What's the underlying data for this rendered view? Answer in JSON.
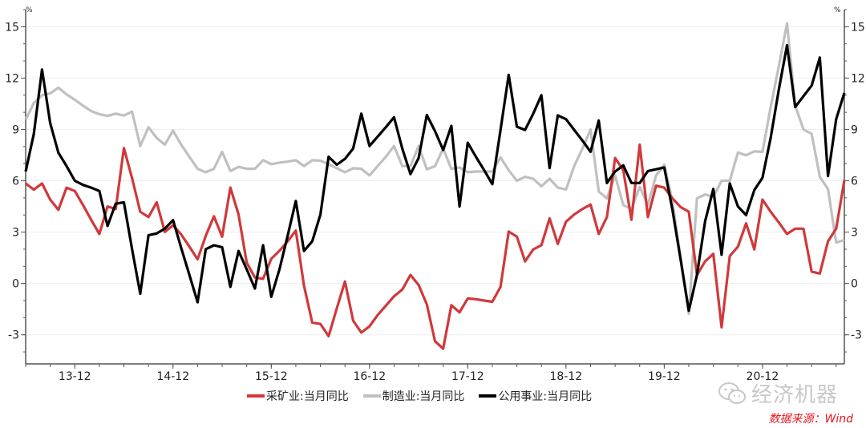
{
  "chart_data": {
    "type": "line",
    "x": [
      "2013-06",
      "2013-07",
      "2013-08",
      "2013-09",
      "2013-10",
      "2013-11",
      "2013-12",
      "2014-01",
      "2014-02",
      "2014-03",
      "2014-04",
      "2014-05",
      "2014-06",
      "2014-07",
      "2014-08",
      "2014-09",
      "2014-10",
      "2014-11",
      "2014-12",
      "2015-01",
      "2015-02",
      "2015-03",
      "2015-04",
      "2015-05",
      "2015-06",
      "2015-07",
      "2015-08",
      "2015-09",
      "2015-10",
      "2015-11",
      "2015-12",
      "2016-01",
      "2016-02",
      "2016-03",
      "2016-04",
      "2016-05",
      "2016-06",
      "2016-07",
      "2016-08",
      "2016-09",
      "2016-10",
      "2016-11",
      "2016-12",
      "2017-01",
      "2017-02",
      "2017-03",
      "2017-04",
      "2017-05",
      "2017-06",
      "2017-07",
      "2017-08",
      "2017-09",
      "2017-10",
      "2017-11",
      "2017-12",
      "2018-01",
      "2018-02",
      "2018-03",
      "2018-04",
      "2018-05",
      "2018-06",
      "2018-07",
      "2018-08",
      "2018-09",
      "2018-10",
      "2018-11",
      "2018-12",
      "2019-01",
      "2019-02",
      "2019-03",
      "2019-04",
      "2019-05",
      "2019-06",
      "2019-07",
      "2019-08",
      "2019-09",
      "2019-10",
      "2019-11",
      "2019-12",
      "2020-01",
      "2020-02",
      "2020-03",
      "2020-04",
      "2020-05",
      "2020-06",
      "2020-07",
      "2020-08",
      "2020-09",
      "2020-10",
      "2020-11",
      "2020-12",
      "2021-01",
      "2021-02",
      "2021-03",
      "2021-04",
      "2021-05",
      "2021-06",
      "2021-07",
      "2021-08",
      "2021-09",
      "2021-10"
    ],
    "x_tick_labels": [
      "13-12",
      "14-12",
      "15-12",
      "16-12",
      "17-12",
      "18-12",
      "19-12",
      "20-12"
    ],
    "x_tick_values": [
      "2013-12",
      "2014-12",
      "2015-12",
      "2016-12",
      "2017-12",
      "2018-12",
      "2019-12",
      "2020-12"
    ],
    "y_ticks": [
      -3,
      0,
      3,
      6,
      9,
      12,
      15
    ],
    "ylim": [
      -4.7,
      16
    ],
    "y_unit_left": "%",
    "y_unit_right": "%",
    "grid": true,
    "legend_position": "bottom",
    "series": [
      {
        "name": "采矿业:当月同比",
        "color": "#d0393b",
        "values": [
          5.84,
          5.48,
          5.84,
          4.9,
          4.3,
          5.6,
          5.4,
          4.58,
          3.72,
          2.89,
          4.5,
          4.35,
          7.91,
          6.15,
          4.19,
          3.88,
          4.74,
          3.01,
          3.4,
          2.86,
          2.15,
          1.41,
          2.78,
          3.92,
          2.73,
          5.6,
          4.03,
          1.21,
          0.35,
          0.27,
          1.44,
          1.91,
          2.46,
          3.09,
          -0.13,
          -2.29,
          -2.37,
          -3.08,
          -1.46,
          0.11,
          -2.17,
          -2.87,
          -2.51,
          -1.85,
          -1.3,
          -0.75,
          -0.36,
          0.5,
          -0.09,
          -1.22,
          -3.38,
          -3.81,
          -1.27,
          -1.69,
          -0.88,
          -0.92,
          -1.0,
          -1.07,
          -0.2,
          3.03,
          2.73,
          1.29,
          1.99,
          2.23,
          3.8,
          2.31,
          3.61,
          4.03,
          4.35,
          4.61,
          2.89,
          3.88,
          7.33,
          6.62,
          3.72,
          8.11,
          3.88,
          5.71,
          5.6,
          4.97,
          4.46,
          4.19,
          0.5,
          1.29,
          1.73,
          -2.56,
          1.6,
          2.15,
          3.51,
          1.99,
          4.9,
          4.19,
          3.56,
          2.89,
          3.2,
          3.2,
          0.69,
          0.58,
          2.46,
          3.2,
          6.03
        ]
      },
      {
        "name": "制造业:当月同比",
        "color": "#c0c0c0",
        "values": [
          9.57,
          10.54,
          11.0,
          11.1,
          11.44,
          11.05,
          10.73,
          10.39,
          10.07,
          9.89,
          9.79,
          9.92,
          9.81,
          10.04,
          8.03,
          9.13,
          8.5,
          8.11,
          8.93,
          8.11,
          7.4,
          6.7,
          6.5,
          6.7,
          7.69,
          6.57,
          6.81,
          6.7,
          6.7,
          7.2,
          6.97,
          7.06,
          7.12,
          7.2,
          6.86,
          7.2,
          7.17,
          6.97,
          6.73,
          6.5,
          6.73,
          6.7,
          6.31,
          6.86,
          7.4,
          8.03,
          6.86,
          6.86,
          8.03,
          6.67,
          6.86,
          7.88,
          6.7,
          6.78,
          6.5,
          6.54,
          6.54,
          6.54,
          7.37,
          6.62,
          6.0,
          6.23,
          6.12,
          5.68,
          6.12,
          5.6,
          5.49,
          6.86,
          7.88,
          9.0,
          5.37,
          4.97,
          6.31,
          4.58,
          4.35,
          5.64,
          4.58,
          6.31,
          6.94,
          4.8,
          1.5,
          -1.77,
          4.97,
          5.2,
          5.05,
          6.0,
          6.0,
          7.65,
          7.49,
          7.72,
          7.69,
          10.3,
          12.7,
          15.2,
          10.39,
          9.0,
          8.74,
          6.23,
          5.52,
          2.39,
          2.54
        ]
      },
      {
        "name": "公用事业:当月同比",
        "color": "#000000",
        "values": [
          6.54,
          8.74,
          12.5,
          9.37,
          7.64,
          6.86,
          6.0,
          5.76,
          5.6,
          5.4,
          3.36,
          4.66,
          4.74,
          2.0,
          -0.6,
          2.82,
          2.92,
          3.2,
          3.7,
          2.07,
          0.5,
          -1.1,
          2.0,
          2.23,
          2.12,
          -0.2,
          1.9,
          0.82,
          -0.3,
          2.23,
          -0.78,
          0.82,
          2.78,
          4.82,
          1.9,
          2.46,
          4.03,
          7.4,
          6.94,
          7.28,
          7.88,
          9.92,
          8.03,
          8.58,
          9.13,
          9.71,
          7.88,
          6.39,
          7.33,
          9.84,
          8.9,
          7.8,
          9.21,
          4.5,
          8.22,
          7.4,
          6.62,
          5.8,
          8.97,
          12.19,
          9.16,
          8.97,
          9.92,
          11.0,
          6.74,
          9.82,
          9.6,
          8.97,
          8.35,
          7.69,
          9.52,
          5.87,
          6.54,
          6.9,
          5.87,
          5.87,
          6.57,
          6.67,
          6.78,
          4.3,
          1.4,
          -1.6,
          0.5,
          3.64,
          5.52,
          1.68,
          5.84,
          4.5,
          3.99,
          5.45,
          6.18,
          8.5,
          11.33,
          13.92,
          10.31,
          10.94,
          11.56,
          13.2,
          6.28,
          9.6,
          11.14
        ]
      }
    ]
  },
  "watermark": {
    "text": "经济机器",
    "icon": "wechat-icon"
  },
  "source": "数据来源：Wind"
}
